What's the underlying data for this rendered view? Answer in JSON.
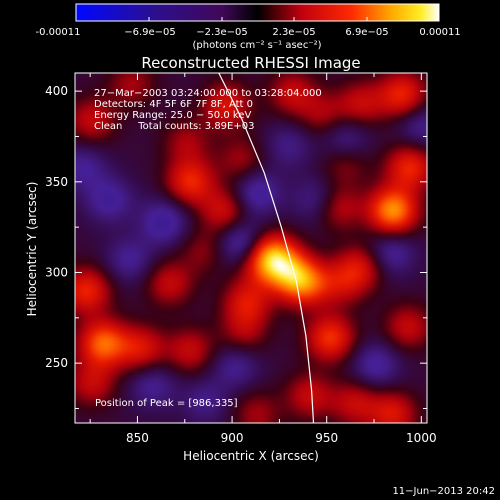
{
  "colorbar": {
    "tick_labels": [
      "-0.00011",
      "−6.9e−05",
      "−2.3e−05",
      "2.3e−05",
      "6.9e−05",
      "0.00011"
    ],
    "unit_label": "(photons cm⁻² s⁻¹ asec⁻²)",
    "range": [
      -0.00011,
      0.00011
    ]
  },
  "title": "Reconstructed RHESSI Image",
  "annotations": [
    "27−Mar−2003 03:24:00.000 to 03:28:04.000",
    "Detectors: 4F 5F 6F 7F 8F, Att 0",
    "Energy Range: 25.0 − 50.0 keV",
    "Clean     Total counts: 3.89E+03"
  ],
  "peak_label": "Position of Peak = [986,335]",
  "timestamp": "11−Jun−2013 20:42",
  "colors": {
    "background": "#000000",
    "text": "#ffffff"
  },
  "chart_data": {
    "type": "heatmap",
    "title": "Reconstructed RHESSI Image",
    "xlabel": "Heliocentric X (arcsec)",
    "ylabel": "Heliocentric Y (arcsec)",
    "xlim": [
      817,
      1003
    ],
    "ylim": [
      217,
      410
    ],
    "x_ticks": [
      850,
      900,
      950,
      1000
    ],
    "y_ticks": [
      250,
      300,
      350,
      400
    ],
    "x_tick_labels": [
      "850",
      "900",
      "950",
      "1000"
    ],
    "y_tick_labels": [
      "250",
      "300",
      "350",
      "400"
    ],
    "colormap": "blue-purple-red-yellow-white",
    "peak": [
      986,
      335
    ],
    "limb_points": [
      [
        893,
        410
      ],
      [
        905,
        385
      ],
      [
        917,
        355
      ],
      [
        926,
        325
      ],
      [
        934,
        295
      ],
      [
        939,
        265
      ],
      [
        942,
        235
      ],
      [
        943,
        217
      ]
    ],
    "blobs": [
      {
        "x": 921,
        "y": 309,
        "value": 9.0
      },
      {
        "x": 939,
        "y": 294,
        "value": 7.0
      },
      {
        "x": 930,
        "y": 300,
        "value": 6.0
      },
      {
        "x": 878,
        "y": 350,
        "value": 6.0
      },
      {
        "x": 896,
        "y": 334,
        "value": 4.5
      },
      {
        "x": 952,
        "y": 264,
        "value": 6.5
      },
      {
        "x": 985,
        "y": 334,
        "value": 9.5
      },
      {
        "x": 994,
        "y": 358,
        "value": 6.0
      },
      {
        "x": 958,
        "y": 294,
        "value": 3.5
      },
      {
        "x": 968,
        "y": 303,
        "value": 4.5
      },
      {
        "x": 832,
        "y": 261,
        "value": 8.0
      },
      {
        "x": 823,
        "y": 290,
        "value": 6.0
      },
      {
        "x": 826,
        "y": 239,
        "value": 4.0
      },
      {
        "x": 852,
        "y": 258,
        "value": 5.0
      },
      {
        "x": 878,
        "y": 257,
        "value": 4.0
      },
      {
        "x": 906,
        "y": 266,
        "value": 3.0
      },
      {
        "x": 867,
        "y": 294,
        "value": 4.0
      },
      {
        "x": 985,
        "y": 222,
        "value": 5.0
      },
      {
        "x": 965,
        "y": 228,
        "value": 4.0
      },
      {
        "x": 941,
        "y": 232,
        "value": 4.0
      },
      {
        "x": 913,
        "y": 222,
        "value": 3.0
      },
      {
        "x": 897,
        "y": 392,
        "value": 5.0
      },
      {
        "x": 932,
        "y": 399,
        "value": 4.0
      },
      {
        "x": 948,
        "y": 387,
        "value": 3.0
      },
      {
        "x": 968,
        "y": 393,
        "value": 4.0
      },
      {
        "x": 990,
        "y": 398,
        "value": 6.0
      },
      {
        "x": 826,
        "y": 384,
        "value": 4.0
      },
      {
        "x": 905,
        "y": 362,
        "value": 3.0
      },
      {
        "x": 993,
        "y": 270,
        "value": 4.0
      },
      {
        "x": 956,
        "y": 336,
        "value": 4.0
      },
      {
        "x": 885,
        "y": 312,
        "value": 2.5
      },
      {
        "x": 908,
        "y": 283,
        "value": 5.0
      },
      {
        "x": 913,
        "y": 302,
        "value": 2.0
      },
      {
        "x": 847,
        "y": 404,
        "value": 3.0
      },
      {
        "x": 876,
        "y": 372,
        "value": 3.0
      },
      {
        "x": 960,
        "y": 360,
        "value": 2.5
      },
      {
        "x": 905,
        "y": 316,
        "value": -4.5
      },
      {
        "x": 913,
        "y": 344,
        "value": -4.0
      },
      {
        "x": 902,
        "y": 249,
        "value": -3.0
      },
      {
        "x": 864,
        "y": 328,
        "value": -4.0
      },
      {
        "x": 846,
        "y": 307,
        "value": -3.0
      },
      {
        "x": 976,
        "y": 249,
        "value": -3.5
      },
      {
        "x": 945,
        "y": 340,
        "value": -3.0
      },
      {
        "x": 835,
        "y": 340,
        "value": -3.5
      },
      {
        "x": 960,
        "y": 374,
        "value": -3.0
      },
      {
        "x": 858,
        "y": 238,
        "value": -3.0
      },
      {
        "x": 984,
        "y": 311,
        "value": -3.5
      },
      {
        "x": 886,
        "y": 229,
        "value": -2.5
      },
      {
        "x": 930,
        "y": 370,
        "value": -2.5
      },
      {
        "x": 1000,
        "y": 381,
        "value": -3.0
      },
      {
        "x": 821,
        "y": 358,
        "value": -3.0
      }
    ]
  }
}
